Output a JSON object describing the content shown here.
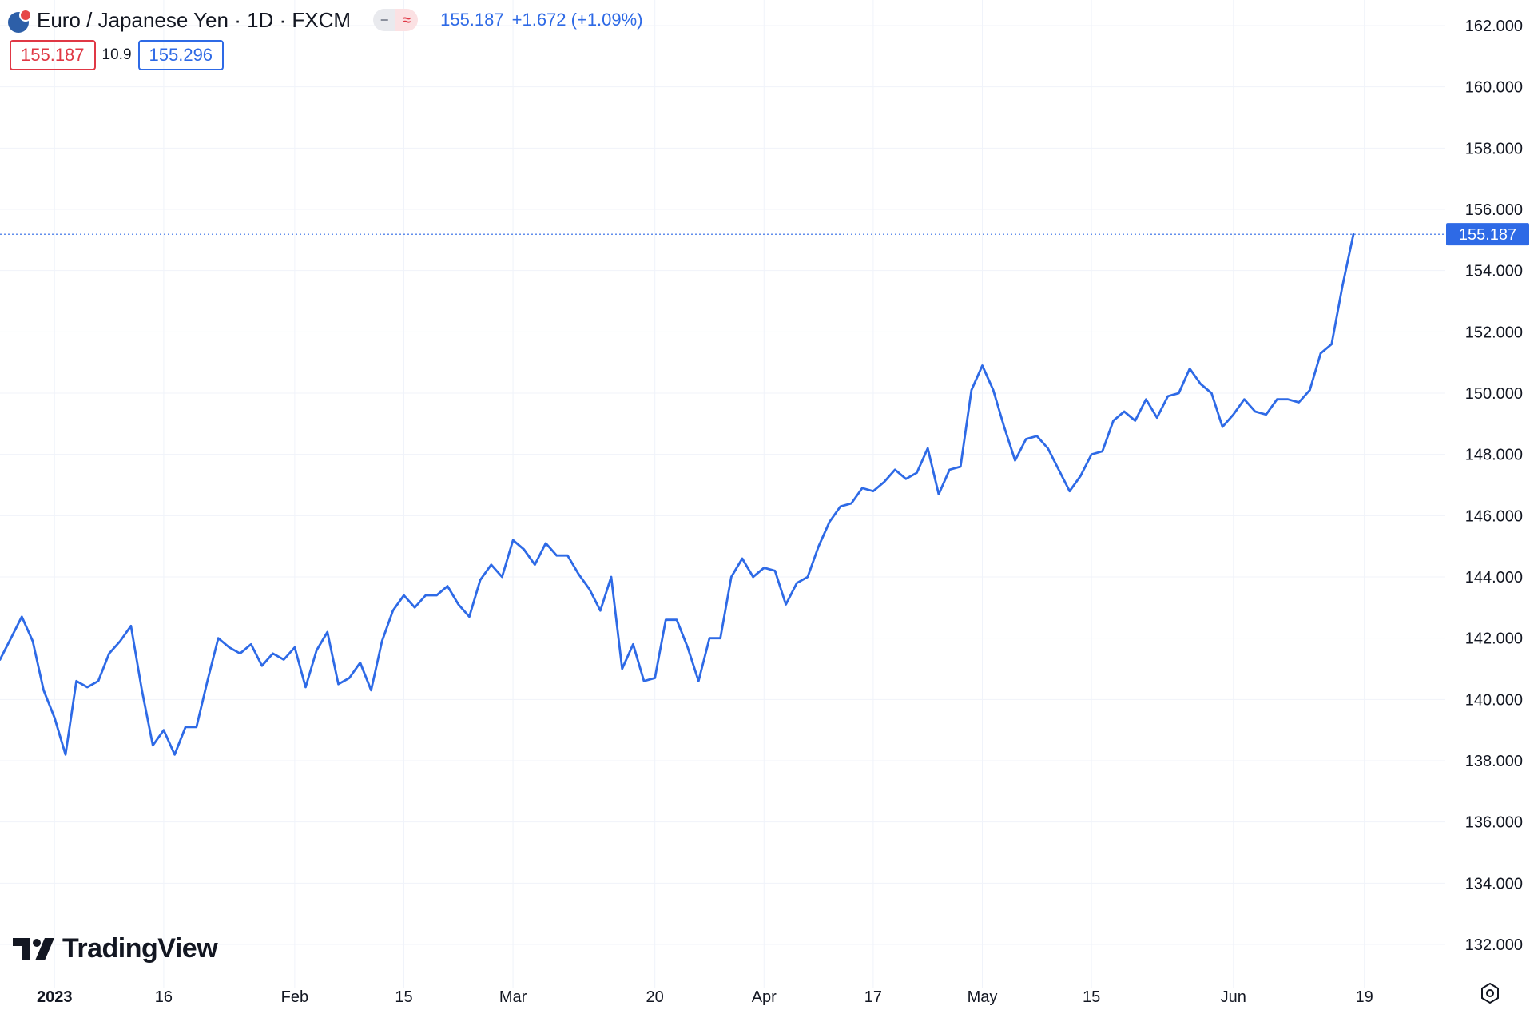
{
  "legend": {
    "symbol": "Euro / Japanese Yen · 1D · FXCM",
    "price": "155.187",
    "change": "+1.672 (+1.09%)",
    "toggle_left": "−",
    "toggle_right": "≈"
  },
  "quotes": {
    "bid": "155.187",
    "spread": "10.9",
    "ask": "155.296"
  },
  "brand": {
    "name": "TradingView"
  },
  "colors": {
    "line": "#2e6ae6",
    "bid": "#e03845",
    "ask": "#2e6ae6",
    "grid": "#f0f3fa",
    "text": "#131722"
  },
  "icons": {
    "symbol": "eu-jp-flag-icon",
    "settings": "settings-icon"
  },
  "chart_data": {
    "type": "line",
    "ylim": [
      131.0,
      163.0
    ],
    "y_ticks": [
      "162.000",
      "160.000",
      "158.000",
      "156.000",
      "154.000",
      "152.000",
      "150.000",
      "148.000",
      "146.000",
      "144.000",
      "142.000",
      "140.000",
      "138.000",
      "136.000",
      "134.000",
      "132.000"
    ],
    "x_labels": [
      {
        "label": "2023",
        "i": 5,
        "bold": true
      },
      {
        "label": "16",
        "i": 15
      },
      {
        "label": "Feb",
        "i": 27
      },
      {
        "label": "15",
        "i": 37
      },
      {
        "label": "Mar",
        "i": 47
      },
      {
        "label": "20",
        "i": 60
      },
      {
        "label": "Apr",
        "i": 70
      },
      {
        "label": "17",
        "i": 80
      },
      {
        "label": "May",
        "i": 90
      },
      {
        "label": "15",
        "i": 100
      },
      {
        "label": "Jun",
        "i": 113
      },
      {
        "label": "19",
        "i": 125
      }
    ],
    "last_price_label": "155.187",
    "last_price": 155.187,
    "series": [
      {
        "values": [
          141.3,
          142.0,
          142.7,
          141.9,
          140.3,
          139.4,
          138.2,
          140.6,
          140.4,
          140.6,
          141.5,
          141.9,
          142.4,
          140.3,
          138.5,
          139.0,
          138.2,
          139.1,
          139.1,
          140.6,
          142.0,
          141.7,
          141.5,
          141.8,
          141.1,
          141.5,
          141.3,
          141.7,
          140.4,
          141.6,
          142.2,
          140.5,
          140.7,
          141.2,
          140.3,
          141.9,
          142.9,
          143.4,
          143.0,
          143.4,
          143.4,
          143.7,
          143.1,
          142.7,
          143.9,
          144.4,
          144.0,
          145.2,
          144.9,
          144.4,
          145.1,
          144.7,
          144.7,
          144.1,
          143.6,
          142.9,
          144.0,
          141.0,
          141.8,
          140.6,
          140.7,
          142.6,
          142.6,
          141.7,
          140.6,
          142.0,
          142.0,
          144.0,
          144.6,
          144.0,
          144.3,
          144.2,
          143.1,
          143.8,
          144.0,
          145.0,
          145.8,
          146.3,
          146.4,
          146.9,
          146.8,
          147.1,
          147.5,
          147.2,
          147.4,
          148.2,
          146.7,
          147.5,
          147.6,
          150.1,
          150.9,
          150.1,
          148.9,
          147.8,
          148.5,
          148.6,
          148.2,
          147.5,
          146.8,
          147.3,
          148.0,
          148.1,
          149.1,
          149.4,
          149.1,
          149.8,
          149.2,
          149.9,
          150.0,
          150.8,
          150.3,
          150.0,
          148.9,
          149.3,
          149.8,
          149.4,
          149.3,
          149.8,
          149.8,
          149.7,
          150.1,
          151.3,
          151.6,
          153.5,
          155.187
        ]
      }
    ]
  }
}
